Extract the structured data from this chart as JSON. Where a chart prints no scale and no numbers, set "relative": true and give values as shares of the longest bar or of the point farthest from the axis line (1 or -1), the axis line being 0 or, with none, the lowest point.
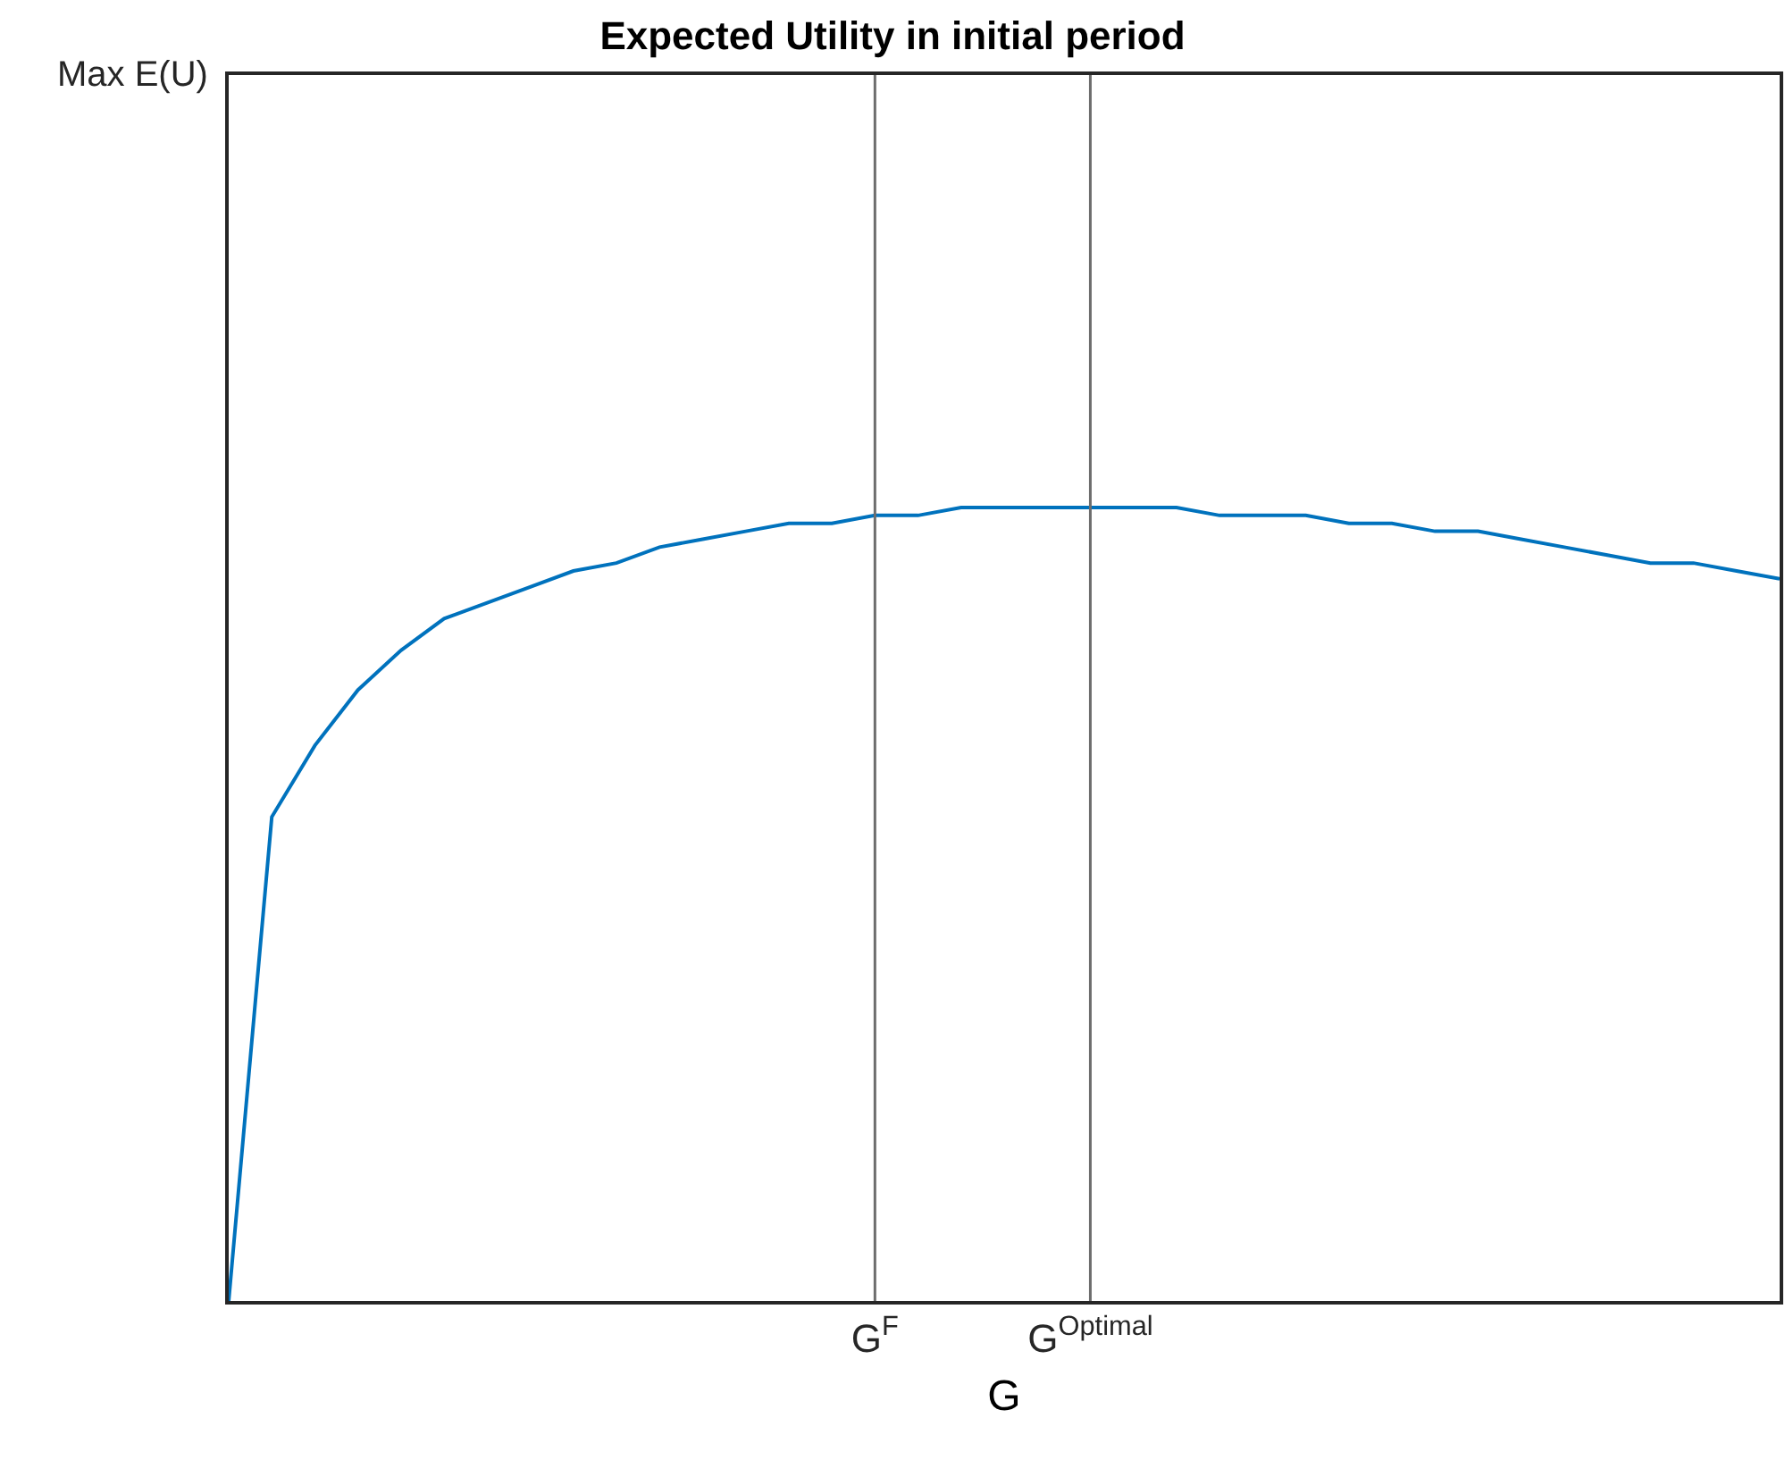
{
  "chart_data": {
    "type": "line",
    "title": "Expected Utility in initial period",
    "xlabel": "G",
    "annotations": [
      "Max E(U)"
    ],
    "relative": true,
    "categories": [
      null,
      null,
      null,
      null,
      null,
      null,
      null,
      null,
      null,
      null,
      null,
      null,
      null,
      null,
      null,
      "G$^{F}$",
      null,
      null,
      null,
      null,
      "G$^{Optimal}$",
      null,
      null,
      null,
      null,
      null,
      null,
      null,
      null,
      null,
      null,
      null,
      null,
      null,
      null,
      null,
      null
    ],
    "series": [
      {
        "color": "#0072bd",
        "values": [
          0,
          0.61,
          0.7,
          0.77,
          0.82,
          0.86,
          0.88,
          0.9,
          0.92,
          0.93,
          0.95,
          0.96,
          0.97,
          0.98,
          0.98,
          0.99,
          0.99,
          1,
          1,
          1,
          1,
          1,
          1,
          0.99,
          0.99,
          0.99,
          0.98,
          0.98,
          0.97,
          0.97,
          0.96,
          0.95,
          0.94,
          0.93,
          0.93,
          0.92,
          0.91
        ]
      }
    ],
    "ref_lines": [
      {
        "axis": "x",
        "value": "G$^{F}$",
        "color": "#6d6d6d"
      },
      {
        "axis": "x",
        "value": "G$^{Optimal}$",
        "color": "#6d6d6d"
      }
    ]
  }
}
